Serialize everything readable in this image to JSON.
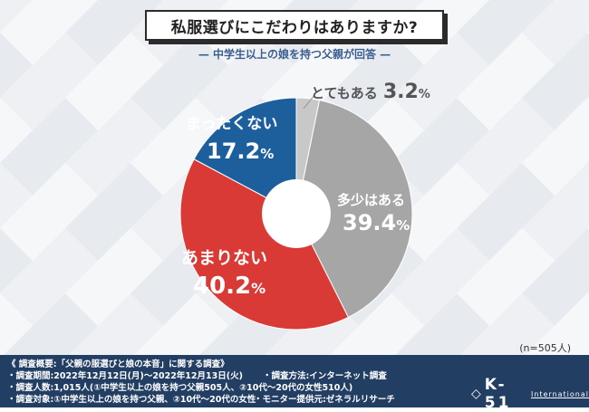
{
  "title": "私服選びにこだわりはありますか?",
  "subtitle": "— 中学生以上の娘を持つ父親が回答 —",
  "chart_data": {
    "type": "pie",
    "style": "donut",
    "unit": "%",
    "slices": [
      {
        "label": "とてもある",
        "value": 3.2,
        "color": "#c8c8c8"
      },
      {
        "label": "多少はある",
        "value": 39.4,
        "color": "#a6a6a6"
      },
      {
        "label": "あまりない",
        "value": 40.2,
        "color": "#d93a35"
      },
      {
        "label": "まったくない",
        "value": 17.2,
        "color": "#1c5f9c"
      }
    ]
  },
  "slice_labels": {
    "s0_name": "とてもある",
    "s0_num": "3.2",
    "s0_pct": "%",
    "s1_name": "多少はある",
    "s1_num": "39.4",
    "s1_pct": "%",
    "s2_name": "あまりない",
    "s2_num": "40.2",
    "s2_pct": "%",
    "s3_name": "まったくない",
    "s3_num": "17.2",
    "s3_pct": "%"
  },
  "sample_size": "(n=505人)",
  "footer": {
    "heading": "《 調査概要:「父親の服選びと娘の本音」に関する調査》",
    "period": "・調査期間:2022年12月12日(月)〜2022年12月13日(火)",
    "method": "・調査方法:インターネット調査",
    "count": "・調査人数:1,015人(①中学生以上の娘を持つ父親505人、②10代〜20代の女性510人)",
    "target": "・調査対象:①中学生以上の娘を持つ父親、②10代〜20代の女性",
    "provider": "・モニター提供元:ゼネラルリサーチ"
  },
  "logo": {
    "mark": "◇",
    "name": "K-51",
    "sub": "International"
  }
}
